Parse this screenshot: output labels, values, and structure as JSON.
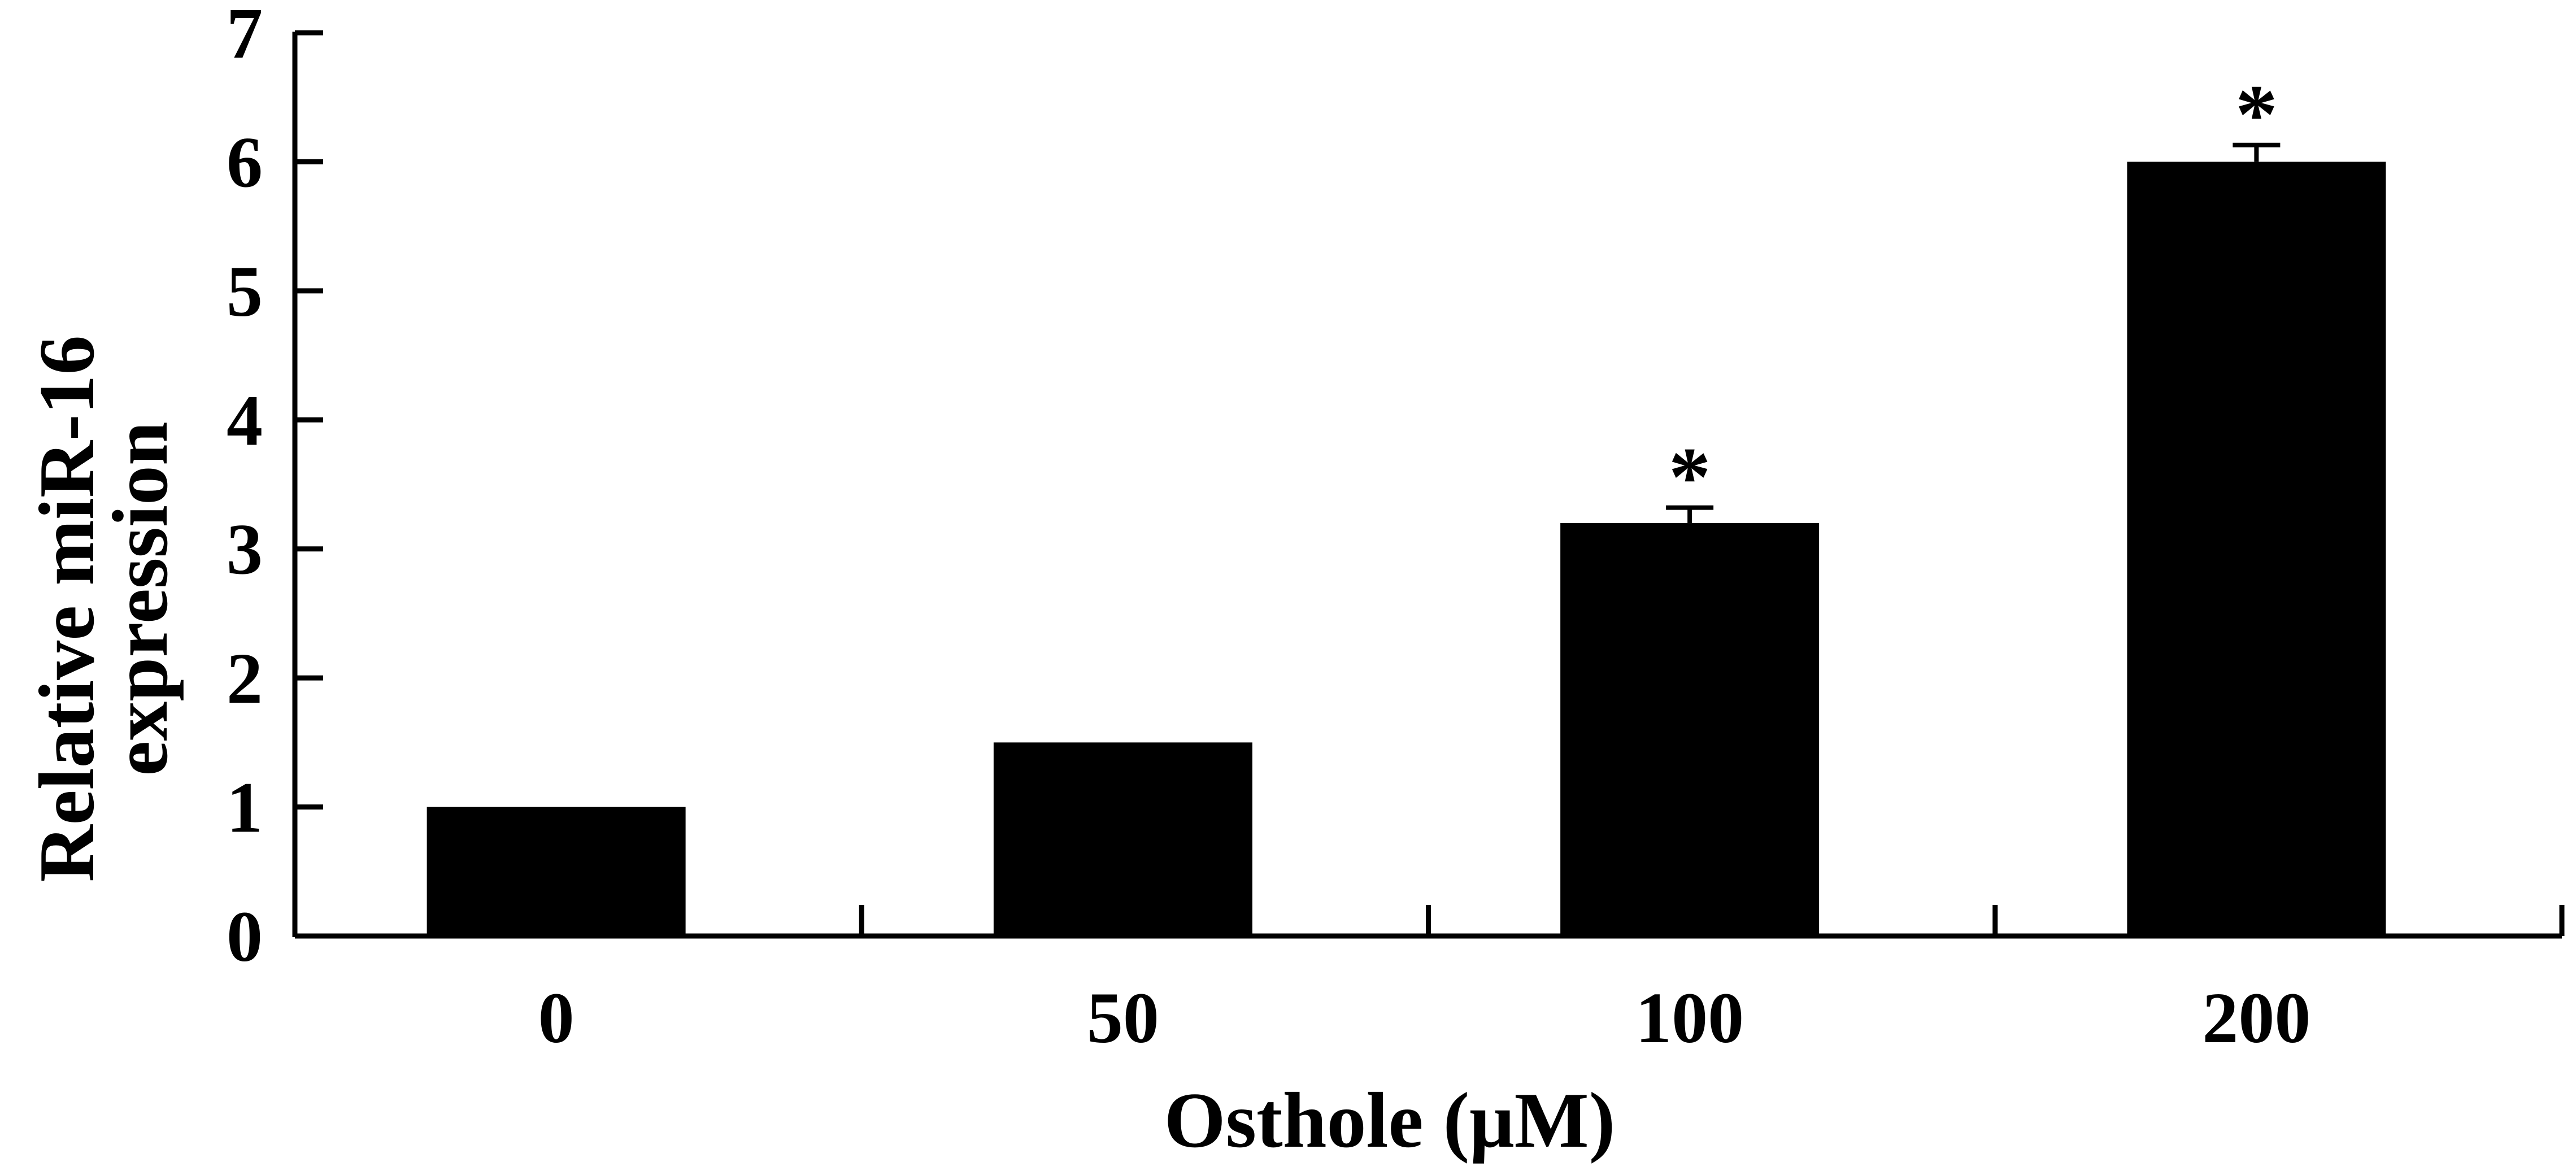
{
  "chart_data": {
    "type": "bar",
    "categories": [
      "0",
      "50",
      "100",
      "200"
    ],
    "values": [
      1.0,
      1.5,
      3.2,
      6.0
    ],
    "error_bars": [
      0,
      0,
      0.12,
      0.13
    ],
    "annotations": [
      "",
      "",
      "*",
      "*"
    ],
    "xlabel": "Osthole (μM)",
    "ylabel_lines": [
      "Relative miR-16",
      "expression"
    ],
    "ylim": [
      0,
      7
    ],
    "yticks": [
      "0",
      "1",
      "2",
      "3",
      "4",
      "5",
      "6",
      "7"
    ],
    "grid": false,
    "legend": "none",
    "bar_color": "#000000"
  }
}
